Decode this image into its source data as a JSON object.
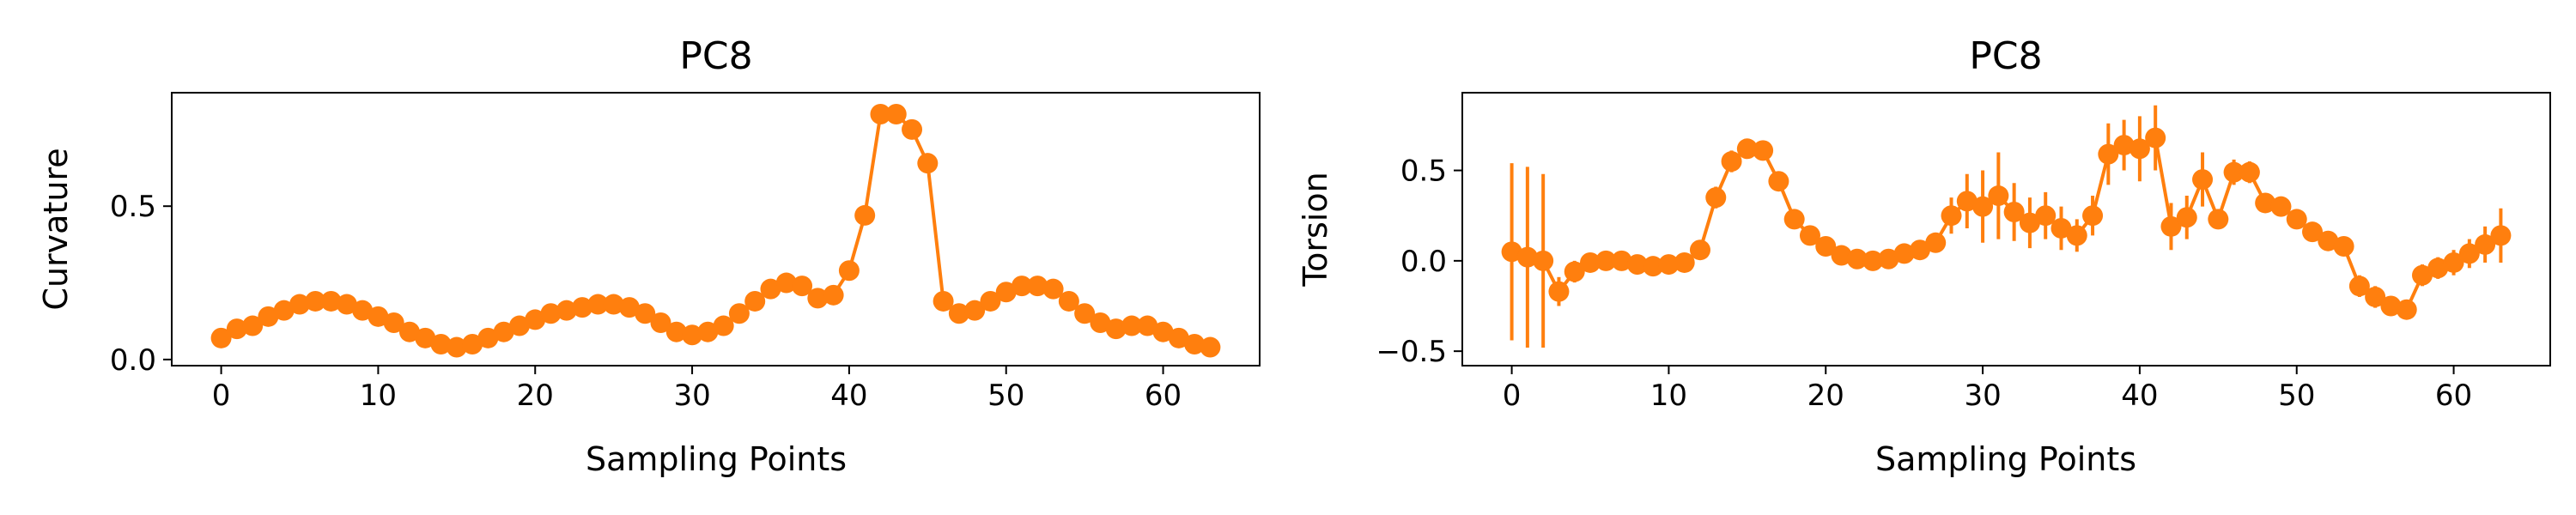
{
  "figure": {
    "accent_color": "#ff7f0e",
    "panels": [
      {
        "title": "PC8",
        "xlabel": "Sampling Points",
        "ylabel": "Curvature"
      },
      {
        "title": "PC8",
        "xlabel": "Sampling Points",
        "ylabel": "Torsion"
      }
    ]
  },
  "chart_data": [
    {
      "type": "line",
      "title": "PC8",
      "xlabel": "Sampling Points",
      "ylabel": "Curvature",
      "xlim": [
        -3.15,
        66.15
      ],
      "ylim": [
        -0.02,
        0.87
      ],
      "xticks": [
        0,
        10,
        20,
        30,
        40,
        50,
        60
      ],
      "yticks": [
        0.0,
        0.5
      ],
      "ytick_labels": [
        "0.0",
        "0.5"
      ],
      "grid": false,
      "marker": "circle",
      "color": "#ff7f0e",
      "x": [
        0,
        1,
        2,
        3,
        4,
        5,
        6,
        7,
        8,
        9,
        10,
        11,
        12,
        13,
        14,
        15,
        16,
        17,
        18,
        19,
        20,
        21,
        22,
        23,
        24,
        25,
        26,
        27,
        28,
        29,
        30,
        31,
        32,
        33,
        34,
        35,
        36,
        37,
        38,
        39,
        40,
        41,
        42,
        43,
        44,
        45,
        46,
        47,
        48,
        49,
        50,
        51,
        52,
        53,
        54,
        55,
        56,
        57,
        58,
        59,
        60,
        61,
        62,
        63
      ],
      "values": [
        0.07,
        0.1,
        0.11,
        0.14,
        0.16,
        0.18,
        0.19,
        0.19,
        0.18,
        0.16,
        0.14,
        0.12,
        0.09,
        0.07,
        0.05,
        0.04,
        0.05,
        0.07,
        0.09,
        0.11,
        0.13,
        0.15,
        0.16,
        0.17,
        0.18,
        0.18,
        0.17,
        0.15,
        0.12,
        0.09,
        0.08,
        0.09,
        0.11,
        0.15,
        0.19,
        0.23,
        0.25,
        0.24,
        0.2,
        0.21,
        0.29,
        0.47,
        0.8,
        0.8,
        0.75,
        0.64,
        0.19,
        0.15,
        0.16,
        0.19,
        0.22,
        0.24,
        0.24,
        0.23,
        0.19,
        0.15,
        0.12,
        0.1,
        0.11,
        0.11,
        0.09,
        0.07,
        0.05,
        0.04
      ],
      "errors": []
    },
    {
      "type": "line",
      "title": "PC8",
      "xlabel": "Sampling Points",
      "ylabel": "Torsion",
      "xlim": [
        -3.15,
        66.15
      ],
      "ylim": [
        -0.58,
        0.93
      ],
      "xticks": [
        0,
        10,
        20,
        30,
        40,
        50,
        60
      ],
      "yticks": [
        -0.5,
        0.0,
        0.5
      ],
      "ytick_labels": [
        "−0.5",
        "0.0",
        "0.5"
      ],
      "grid": false,
      "marker": "circle",
      "color": "#ff7f0e",
      "x": [
        0,
        1,
        2,
        3,
        4,
        5,
        6,
        7,
        8,
        9,
        10,
        11,
        12,
        13,
        14,
        15,
        16,
        17,
        18,
        19,
        20,
        21,
        22,
        23,
        24,
        25,
        26,
        27,
        28,
        29,
        30,
        31,
        32,
        33,
        34,
        35,
        36,
        37,
        38,
        39,
        40,
        41,
        42,
        43,
        44,
        45,
        46,
        47,
        48,
        49,
        50,
        51,
        52,
        53,
        54,
        55,
        56,
        57,
        58,
        59,
        60,
        61,
        62,
        63
      ],
      "values": [
        0.05,
        0.02,
        0.0,
        -0.17,
        -0.06,
        -0.01,
        0.0,
        0.0,
        -0.02,
        -0.03,
        -0.02,
        -0.01,
        0.06,
        0.35,
        0.55,
        0.62,
        0.61,
        0.44,
        0.23,
        0.14,
        0.08,
        0.03,
        0.01,
        0.0,
        0.01,
        0.04,
        0.06,
        0.1,
        0.25,
        0.33,
        0.3,
        0.36,
        0.27,
        0.21,
        0.25,
        0.18,
        0.14,
        0.25,
        0.59,
        0.64,
        0.62,
        0.68,
        0.19,
        0.24,
        0.45,
        0.23,
        0.49,
        0.49,
        0.32,
        0.3,
        0.23,
        0.16,
        0.11,
        0.08,
        -0.14,
        -0.2,
        -0.25,
        -0.27,
        -0.08,
        -0.04,
        -0.01,
        0.04,
        0.09,
        0.14
      ],
      "errors": [
        0.49,
        0.5,
        0.48,
        0.08,
        0.06,
        0.04,
        0.03,
        0.03,
        0.03,
        0.03,
        0.03,
        0.03,
        0.05,
        0.06,
        0.06,
        0.05,
        0.05,
        0.05,
        0.05,
        0.04,
        0.04,
        0.03,
        0.03,
        0.03,
        0.03,
        0.03,
        0.03,
        0.04,
        0.1,
        0.15,
        0.2,
        0.24,
        0.16,
        0.14,
        0.13,
        0.12,
        0.09,
        0.11,
        0.17,
        0.14,
        0.18,
        0.18,
        0.13,
        0.12,
        0.15,
        0.05,
        0.07,
        0.06,
        0.05,
        0.04,
        0.04,
        0.04,
        0.04,
        0.04,
        0.06,
        0.06,
        0.05,
        0.05,
        0.06,
        0.06,
        0.07,
        0.08,
        0.1,
        0.15
      ]
    }
  ]
}
